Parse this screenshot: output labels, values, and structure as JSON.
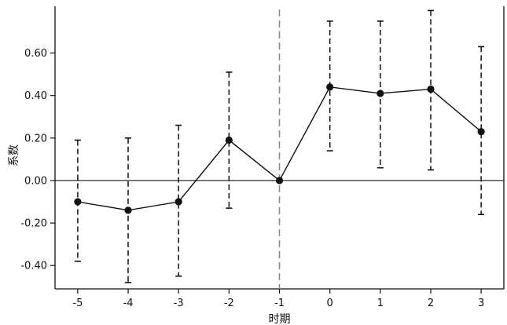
{
  "chart_data": {
    "type": "line",
    "title": "",
    "xlabel": "时期",
    "ylabel": "系数",
    "x": [
      -5,
      -4,
      -3,
      -2,
      -1,
      0,
      1,
      2,
      3
    ],
    "x_tick_labels": [
      "-5",
      "-4",
      "-3",
      "-2",
      "-1",
      "0",
      "1",
      "2",
      "3"
    ],
    "series": [
      {
        "values": [
          -0.1,
          -0.14,
          -0.1,
          0.19,
          0.0,
          0.44,
          0.41,
          0.43,
          0.23
        ],
        "ci_lower": [
          -0.38,
          -0.48,
          -0.45,
          -0.13,
          0.0,
          0.14,
          0.06,
          0.05,
          -0.16
        ],
        "ci_upper": [
          0.19,
          0.2,
          0.26,
          0.51,
          0.0,
          0.75,
          0.75,
          0.8,
          0.63
        ]
      }
    ],
    "y_ticks": [
      -0.4,
      -0.2,
      0.0,
      0.2,
      0.4,
      0.6
    ],
    "y_tick_labels": [
      "-0.40",
      "-0.20",
      "0.00",
      "0.20",
      "0.40",
      "0.60"
    ],
    "ylim": [
      -0.51,
      0.82
    ],
    "xlim": [
      -5.45,
      3.45
    ],
    "reference_hline": 0,
    "reference_vline": -1,
    "grid": false,
    "colors": {
      "line": "#111111",
      "reference_vline": "#8c8c8c",
      "zero_line": "#111111"
    }
  }
}
